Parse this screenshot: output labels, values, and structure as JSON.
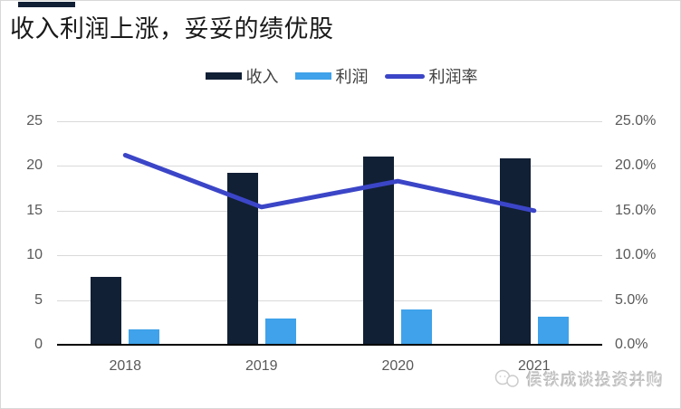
{
  "title": "收入利润上涨，妥妥的绩优股",
  "legend": {
    "revenue": "收入",
    "profit": "利润",
    "margin": "利润率"
  },
  "watermark": {
    "text": "侯铁成谈投资并购"
  },
  "colors": {
    "revenue_bar": "#112035",
    "profit_bar": "#3fa2ea",
    "margin_line": "#3b45c7",
    "gridline": "#d9d9d9",
    "axis_text": "#595959",
    "accent_bar": "#112035"
  },
  "chart_data": {
    "type": "bar",
    "subtype": "grouped-bars-with-line",
    "title": "收入利润上涨，妥妥的绩优股",
    "categories": [
      "2018",
      "2019",
      "2020",
      "2021"
    ],
    "series": [
      {
        "name": "收入",
        "type": "bar",
        "axis": "left",
        "values": [
          7.5,
          19.1,
          21.0,
          20.8
        ]
      },
      {
        "name": "利润",
        "type": "bar",
        "axis": "left",
        "values": [
          1.6,
          2.8,
          3.8,
          3.0
        ]
      },
      {
        "name": "利润率",
        "type": "line",
        "axis": "right",
        "unit": "%",
        "values": [
          21.2,
          15.4,
          18.3,
          15.0
        ]
      }
    ],
    "left_axis": {
      "min": 0,
      "max": 25,
      "step": 5,
      "ticks": [
        "0",
        "5",
        "10",
        "15",
        "20",
        "25"
      ]
    },
    "right_axis": {
      "min": 0,
      "max": 25,
      "step": 5,
      "ticks": [
        "0.0%",
        "5.0%",
        "10.0%",
        "15.0%",
        "20.0%",
        "25.0%"
      ]
    },
    "grid": true,
    "legend_position": "top"
  }
}
